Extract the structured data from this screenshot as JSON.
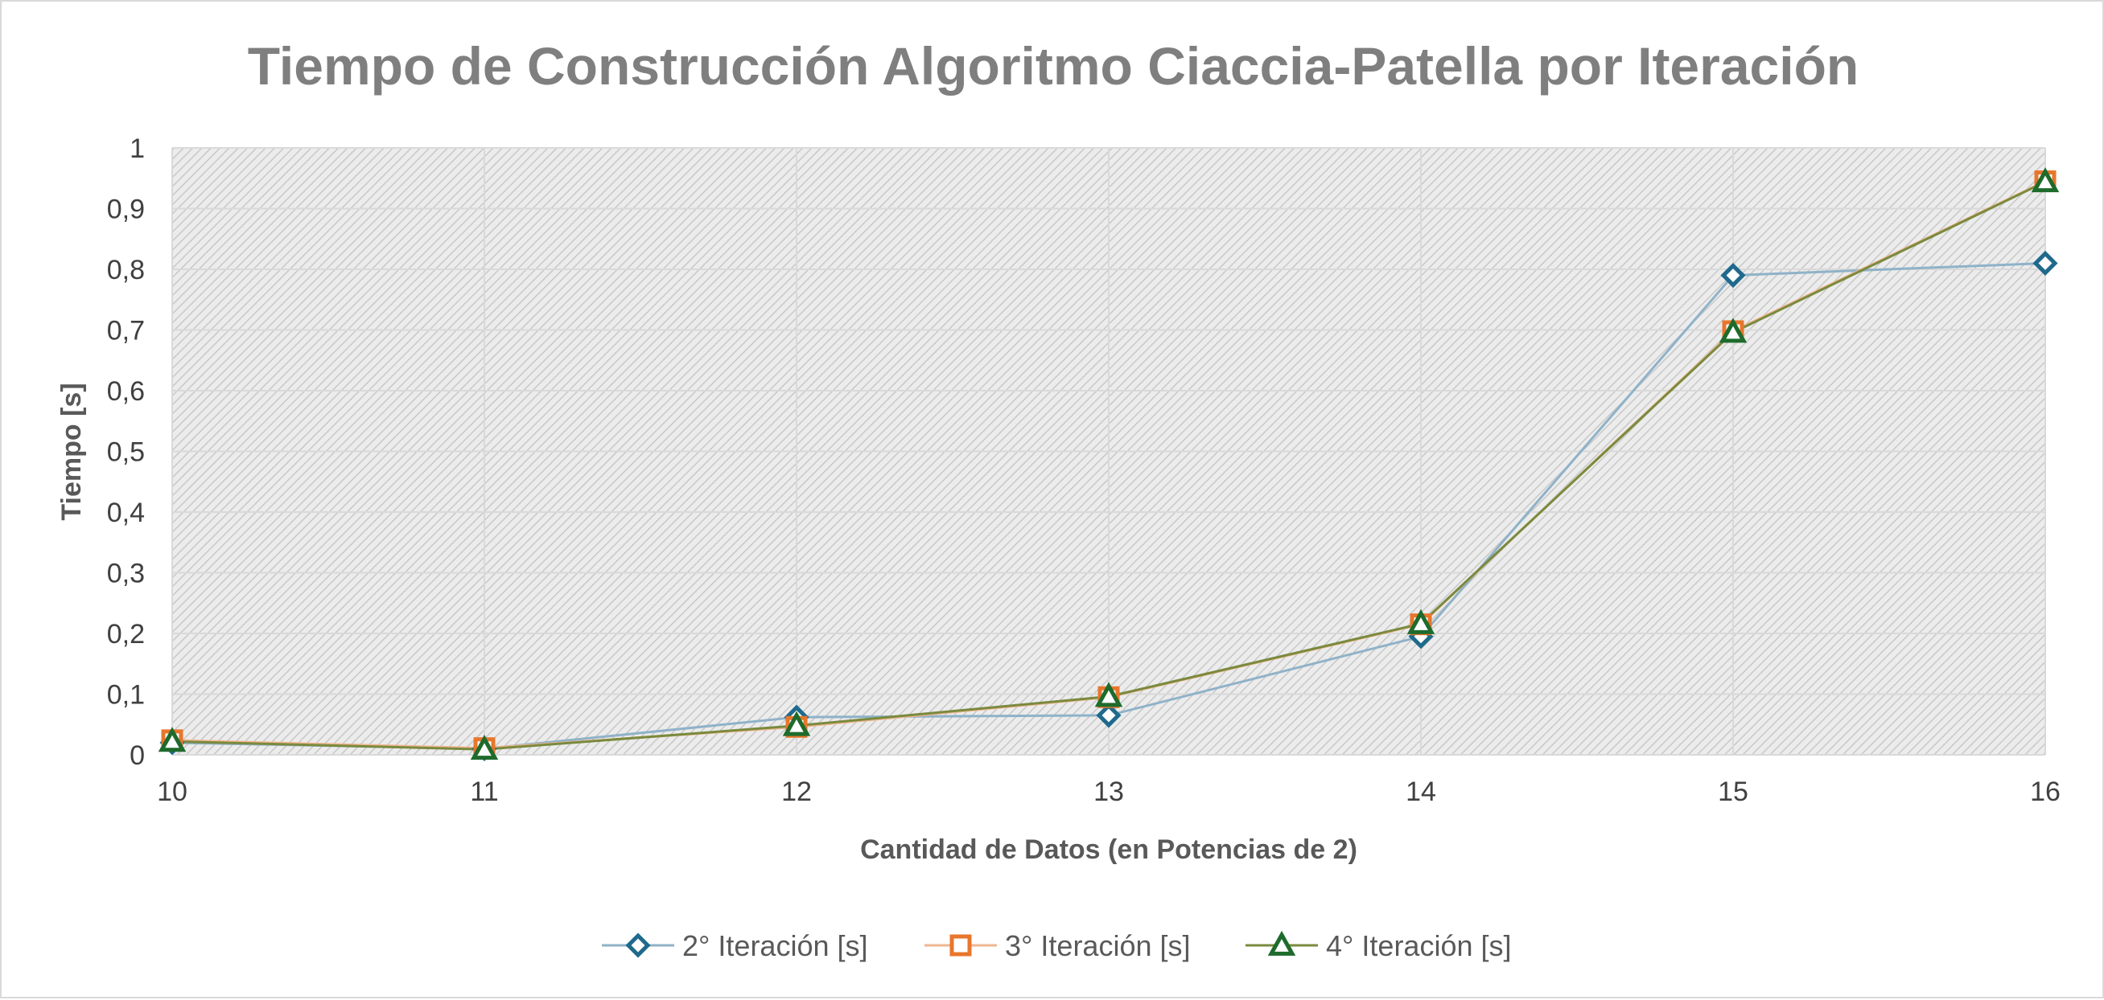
{
  "chart_data": {
    "type": "line",
    "title": "Tiempo de Construcción Algoritmo Ciaccia-Patella por Iteración",
    "xlabel": "Cantidad de Datos (en Potencias de 2)",
    "ylabel": "Tiempo [s]",
    "x": [
      10,
      11,
      12,
      13,
      14,
      15,
      16
    ],
    "x_tick_labels": [
      "10",
      "11",
      "12",
      "13",
      "14",
      "15",
      "16"
    ],
    "xlim": [
      10,
      16
    ],
    "ylim": [
      0,
      1
    ],
    "y_ticks": [
      0,
      0.1,
      0.2,
      0.3,
      0.4,
      0.5,
      0.6,
      0.7,
      0.8,
      0.9,
      1
    ],
    "y_tick_labels": [
      "0",
      "0,1",
      "0,2",
      "0,3",
      "0,4",
      "0,5",
      "0,6",
      "0,7",
      "0,8",
      "0,9",
      "1"
    ],
    "grid": true,
    "plot_background": "hatched light gray",
    "legend_position": "bottom",
    "series": [
      {
        "name": "2° Iteración [s]",
        "values": [
          0.02,
          0.01,
          0.062,
          0.065,
          0.195,
          0.79,
          0.81
        ],
        "color": "#1f6a8c",
        "line_color": "#8fb2c8",
        "marker": "diamond"
      },
      {
        "name": "3° Iteración [s]",
        "values": [
          0.024,
          0.011,
          0.046,
          0.095,
          0.215,
          0.698,
          0.945
        ],
        "color": "#e8762c",
        "line_color": "#f0b690",
        "marker": "square"
      },
      {
        "name": "4° Iteración [s]",
        "values": [
          0.022,
          0.009,
          0.048,
          0.096,
          0.216,
          0.696,
          0.944
        ],
        "color": "#1e6b2c",
        "line_color": "#7a8a3e",
        "marker": "triangle"
      }
    ]
  }
}
